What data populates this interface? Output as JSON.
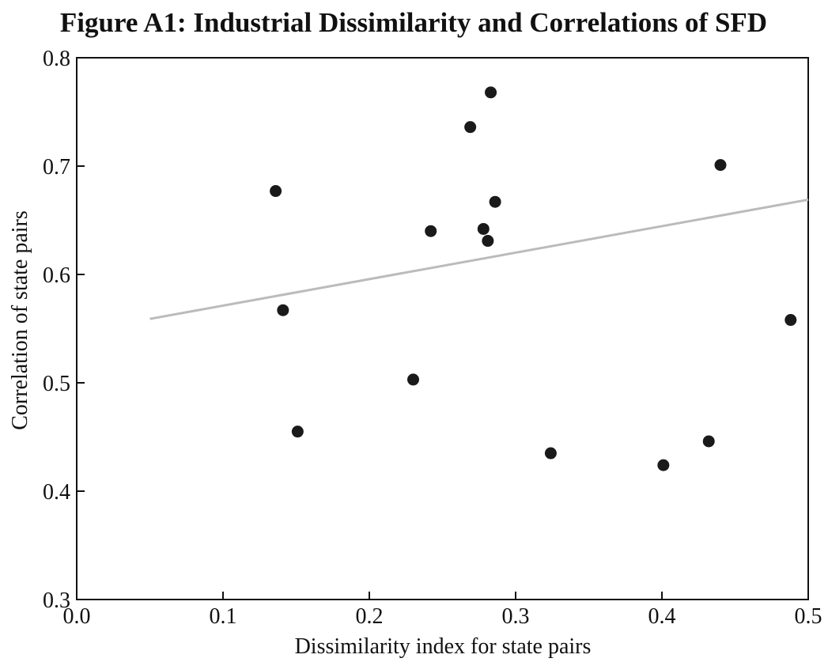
{
  "chart_data": {
    "type": "scatter",
    "title": "Figure A1: Industrial Dissimilarity and Correlations of SFD",
    "x_label": "Dissimilarity index for state pairs",
    "y_label": "Correlation of state pairs",
    "x": [
      0.136,
      0.141,
      0.151,
      0.23,
      0.242,
      0.269,
      0.283,
      0.278,
      0.281,
      0.286,
      0.324,
      0.401,
      0.432,
      0.44,
      0.488
    ],
    "y": [
      0.677,
      0.567,
      0.455,
      0.503,
      0.64,
      0.736,
      0.768,
      0.642,
      0.631,
      0.667,
      0.435,
      0.424,
      0.446,
      0.701,
      0.558
    ],
    "color": "#1a1a1a",
    "trendline": {
      "x": [
        0.05,
        0.5
      ],
      "y": [
        0.559,
        0.669
      ],
      "color": "#bbbbbb"
    },
    "xlim": [
      0,
      0.5
    ],
    "ylim": [
      0.3,
      0.8
    ],
    "xticks": [
      {
        "value": 0,
        "label": "0.0"
      },
      0.1,
      0.2,
      0.3,
      0.4,
      0.5
    ],
    "yticks": [
      0.3,
      0.4,
      0.5,
      0.6,
      0.7,
      0.8
    ],
    "grid": false
  }
}
